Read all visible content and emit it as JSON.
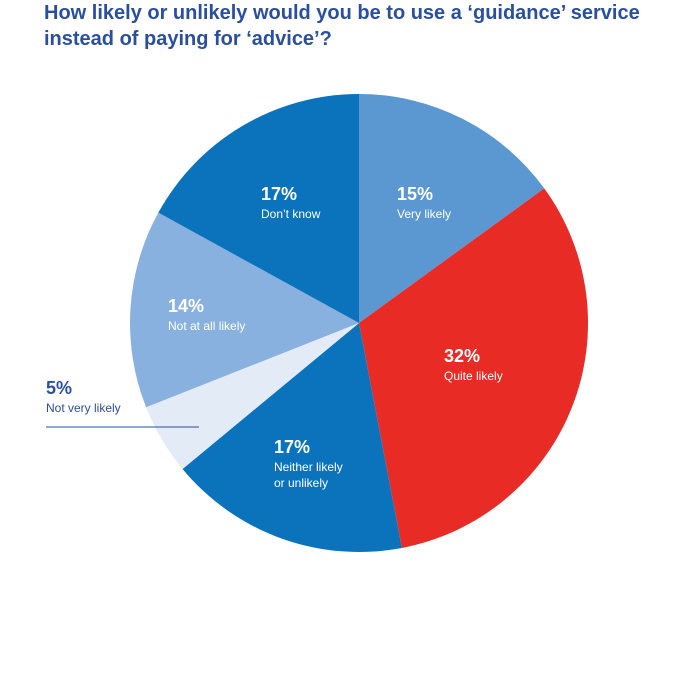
{
  "title_lines": [
    "How likely or unlikely would you be to use a ‘guidance’ service",
    "instead of paying for ‘advice’?"
  ],
  "chart_data": {
    "type": "pie",
    "title": "How likely or unlikely would you be to use a ‘guidance’ service instead of paying for ‘advice’?",
    "slices": [
      {
        "pct_label": "15%",
        "label_lines": [
          "Very likely"
        ],
        "value": 15,
        "color": "#5b98d2",
        "text_color": "#ffffff"
      },
      {
        "pct_label": "32%",
        "label_lines": [
          "Quite likely"
        ],
        "value": 32,
        "color": "#e82b25",
        "text_color": "#ffffff"
      },
      {
        "pct_label": "17%",
        "label_lines": [
          "Neither likely",
          "or unlikely"
        ],
        "value": 17,
        "color": "#0b72bc",
        "text_color": "#ffffff"
      },
      {
        "pct_label": "5%",
        "label_lines": [
          "Not very likely"
        ],
        "value": 5,
        "color": "#e3ebf7",
        "text_color": "#2a4f9e"
      },
      {
        "pct_label": "14%",
        "label_lines": [
          "Not at all likely"
        ],
        "value": 14,
        "color": "#89b1e0",
        "text_color": "#ffffff"
      },
      {
        "pct_label": "17%",
        "label_lines": [
          "Don’t know"
        ],
        "value": 17,
        "color": "#0b72bc",
        "text_color": "#ffffff"
      }
    ]
  }
}
